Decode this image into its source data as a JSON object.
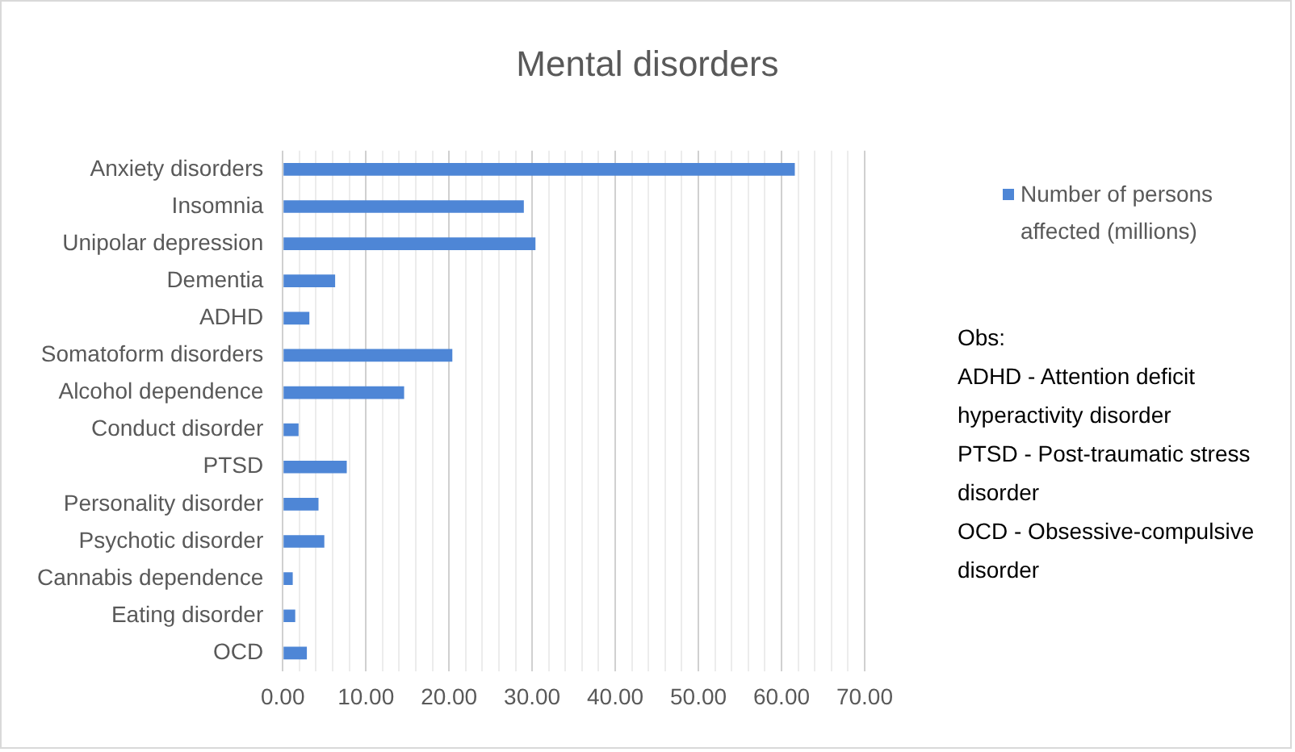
{
  "chart_data": {
    "type": "bar",
    "orientation": "horizontal",
    "title": "Mental disorders",
    "categories": [
      "Anxiety disorders",
      "Insomnia",
      "Unipolar depression",
      "Dementia",
      "ADHD",
      "Somatoform disorders",
      "Alcohol dependence",
      "Conduct disorder",
      "PTSD",
      "Personality disorder",
      "Psychotic disorder",
      "Cannabis dependence",
      "Eating disorder",
      "OCD"
    ],
    "series": [
      {
        "name": "Number of persons affected  (millions)",
        "color": "#4e86d6",
        "values": [
          61.6,
          29.0,
          30.4,
          6.3,
          3.2,
          20.4,
          14.6,
          1.9,
          7.7,
          4.3,
          5.0,
          1.2,
          1.5,
          2.9
        ]
      }
    ],
    "xlim": [
      0,
      70
    ],
    "xticks": [
      {
        "value": 0,
        "label": "0.00"
      },
      {
        "value": 2,
        "label": null
      },
      {
        "value": 4,
        "label": null
      },
      {
        "value": 6,
        "label": null
      },
      {
        "value": 8,
        "label": null
      },
      {
        "value": 10,
        "label": "10.00"
      },
      {
        "value": 12,
        "label": null
      },
      {
        "value": 14,
        "label": null
      },
      {
        "value": 16,
        "label": null
      },
      {
        "value": 18,
        "label": null
      },
      {
        "value": 20,
        "label": "20.00"
      },
      {
        "value": 22,
        "label": null
      },
      {
        "value": 24,
        "label": null
      },
      {
        "value": 26,
        "label": null
      },
      {
        "value": 28,
        "label": null
      },
      {
        "value": 30,
        "label": "30.00"
      },
      {
        "value": 32,
        "label": null
      },
      {
        "value": 34,
        "label": null
      },
      {
        "value": 36,
        "label": null
      },
      {
        "value": 38,
        "label": null
      },
      {
        "value": 40,
        "label": "40.00"
      },
      {
        "value": 42,
        "label": null
      },
      {
        "value": 44,
        "label": null
      },
      {
        "value": 46,
        "label": null
      },
      {
        "value": 48,
        "label": null
      },
      {
        "value": 50,
        "label": "50.00"
      },
      {
        "value": 52,
        "label": null
      },
      {
        "value": 54,
        "label": null
      },
      {
        "value": 56,
        "label": null
      },
      {
        "value": 58,
        "label": null
      },
      {
        "value": 60,
        "label": "60.00"
      },
      {
        "value": 62,
        "label": null
      },
      {
        "value": 64,
        "label": null
      },
      {
        "value": 66,
        "label": null
      },
      {
        "value": 68,
        "label": null
      },
      {
        "value": 70,
        "label": "70.00"
      }
    ],
    "grid": "x",
    "legend": "right",
    "annotations": [
      "Obs:",
      "ADHD - Attention deficit hyperactivity disorder",
      "PTSD - Post-traumatic stress disorder",
      "OCD - Obsessive-compulsive disorder"
    ]
  }
}
